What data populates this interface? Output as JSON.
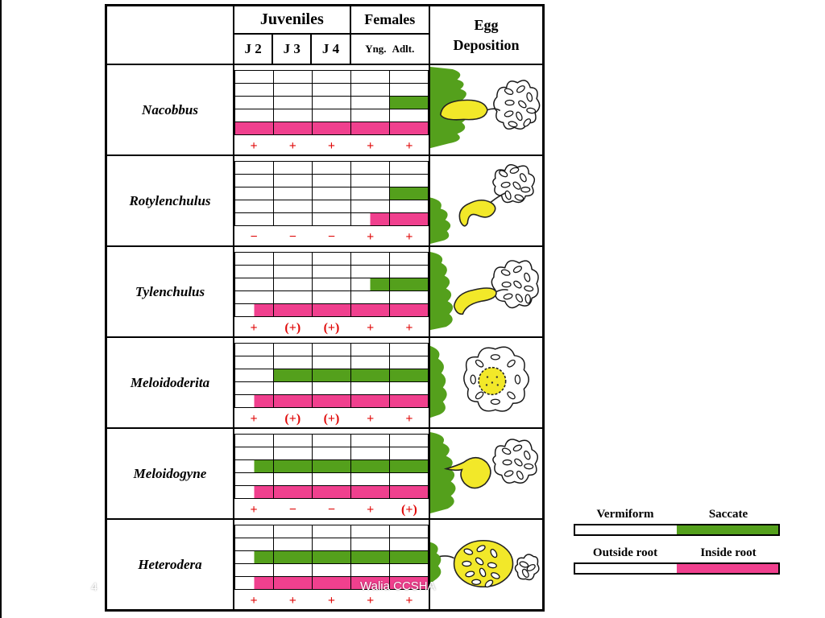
{
  "colors": {
    "green": "#54a01c",
    "pink": "#f0408e",
    "symbol_red": "#e00a0a",
    "yellow": "#f2e829"
  },
  "header": {
    "juveniles": "Juveniles",
    "females": "Females",
    "egg_line1": "Egg",
    "egg_line2": "Deposition",
    "j2": "J 2",
    "j3": "J 3",
    "j4": "J 4",
    "yng": "Yng.",
    "adlt": "Adlt."
  },
  "genera": [
    {
      "name": "Nacobbus",
      "strips": [
        [
          "w",
          "w",
          "w",
          "w",
          "w"
        ],
        [
          "w",
          "w",
          "w",
          "w",
          "w"
        ],
        [
          "w",
          "w",
          "w",
          "w",
          "g"
        ],
        [
          "w",
          "w",
          "w",
          "w",
          "w"
        ],
        [
          "p",
          "p",
          "p",
          "p",
          "p"
        ]
      ],
      "symbols": [
        "+",
        "+",
        "+",
        "+",
        "+"
      ]
    },
    {
      "name": "Rotylenchulus",
      "strips": [
        [
          "w",
          "w",
          "w",
          "w",
          "w"
        ],
        [
          "w",
          "w",
          "w",
          "w",
          "w"
        ],
        [
          "w",
          "w",
          "w",
          "w",
          "g"
        ],
        [
          "w",
          "w",
          "w",
          "w",
          "w"
        ],
        [
          "w",
          "w",
          "w",
          "hp",
          "p"
        ]
      ],
      "symbols": [
        "−",
        "−",
        "−",
        "+",
        "+"
      ]
    },
    {
      "name": "Tylenchulus",
      "strips": [
        [
          "w",
          "w",
          "w",
          "w",
          "w"
        ],
        [
          "w",
          "w",
          "w",
          "w",
          "w"
        ],
        [
          "w",
          "w",
          "w",
          "hg",
          "g"
        ],
        [
          "w",
          "w",
          "w",
          "w",
          "w"
        ],
        [
          "hp",
          "p",
          "p",
          "p",
          "p"
        ]
      ],
      "symbols": [
        "+",
        "(+)",
        "(+)",
        "+",
        "+"
      ]
    },
    {
      "name": "Meloidoderita",
      "strips": [
        [
          "w",
          "w",
          "w",
          "w",
          "w"
        ],
        [
          "w",
          "w",
          "w",
          "w",
          "w"
        ],
        [
          "w",
          "g",
          "g",
          "g",
          "g"
        ],
        [
          "w",
          "w",
          "w",
          "w",
          "w"
        ],
        [
          "hp",
          "p",
          "p",
          "p",
          "p"
        ]
      ],
      "symbols": [
        "+",
        "(+)",
        "(+)",
        "+",
        "+"
      ]
    },
    {
      "name": "Meloidogyne",
      "strips": [
        [
          "w",
          "w",
          "w",
          "w",
          "w"
        ],
        [
          "w",
          "w",
          "w",
          "w",
          "w"
        ],
        [
          "hg",
          "g",
          "g",
          "g",
          "g"
        ],
        [
          "w",
          "w",
          "w",
          "w",
          "w"
        ],
        [
          "hp",
          "p",
          "p",
          "p",
          "p"
        ]
      ],
      "symbols": [
        "+",
        "−",
        "−",
        "+",
        "(+)"
      ]
    },
    {
      "name": "Heterodera",
      "strips": [
        [
          "w",
          "w",
          "w",
          "w",
          "w"
        ],
        [
          "w",
          "w",
          "w",
          "w",
          "w"
        ],
        [
          "hg",
          "g",
          "g",
          "g",
          "g"
        ],
        [
          "w",
          "w",
          "w",
          "w",
          "w"
        ],
        [
          "hp",
          "p",
          "p",
          "p",
          "p"
        ]
      ],
      "symbols": [
        "+",
        "+",
        "+",
        "+",
        "+"
      ]
    }
  ],
  "legend": {
    "vermiform": "Vermiform",
    "saccate": "Saccate",
    "outside_root": "Outside root",
    "inside_root": "Inside root"
  },
  "footer": {
    "page_number": "4",
    "credit": "Walia CCSHA"
  }
}
